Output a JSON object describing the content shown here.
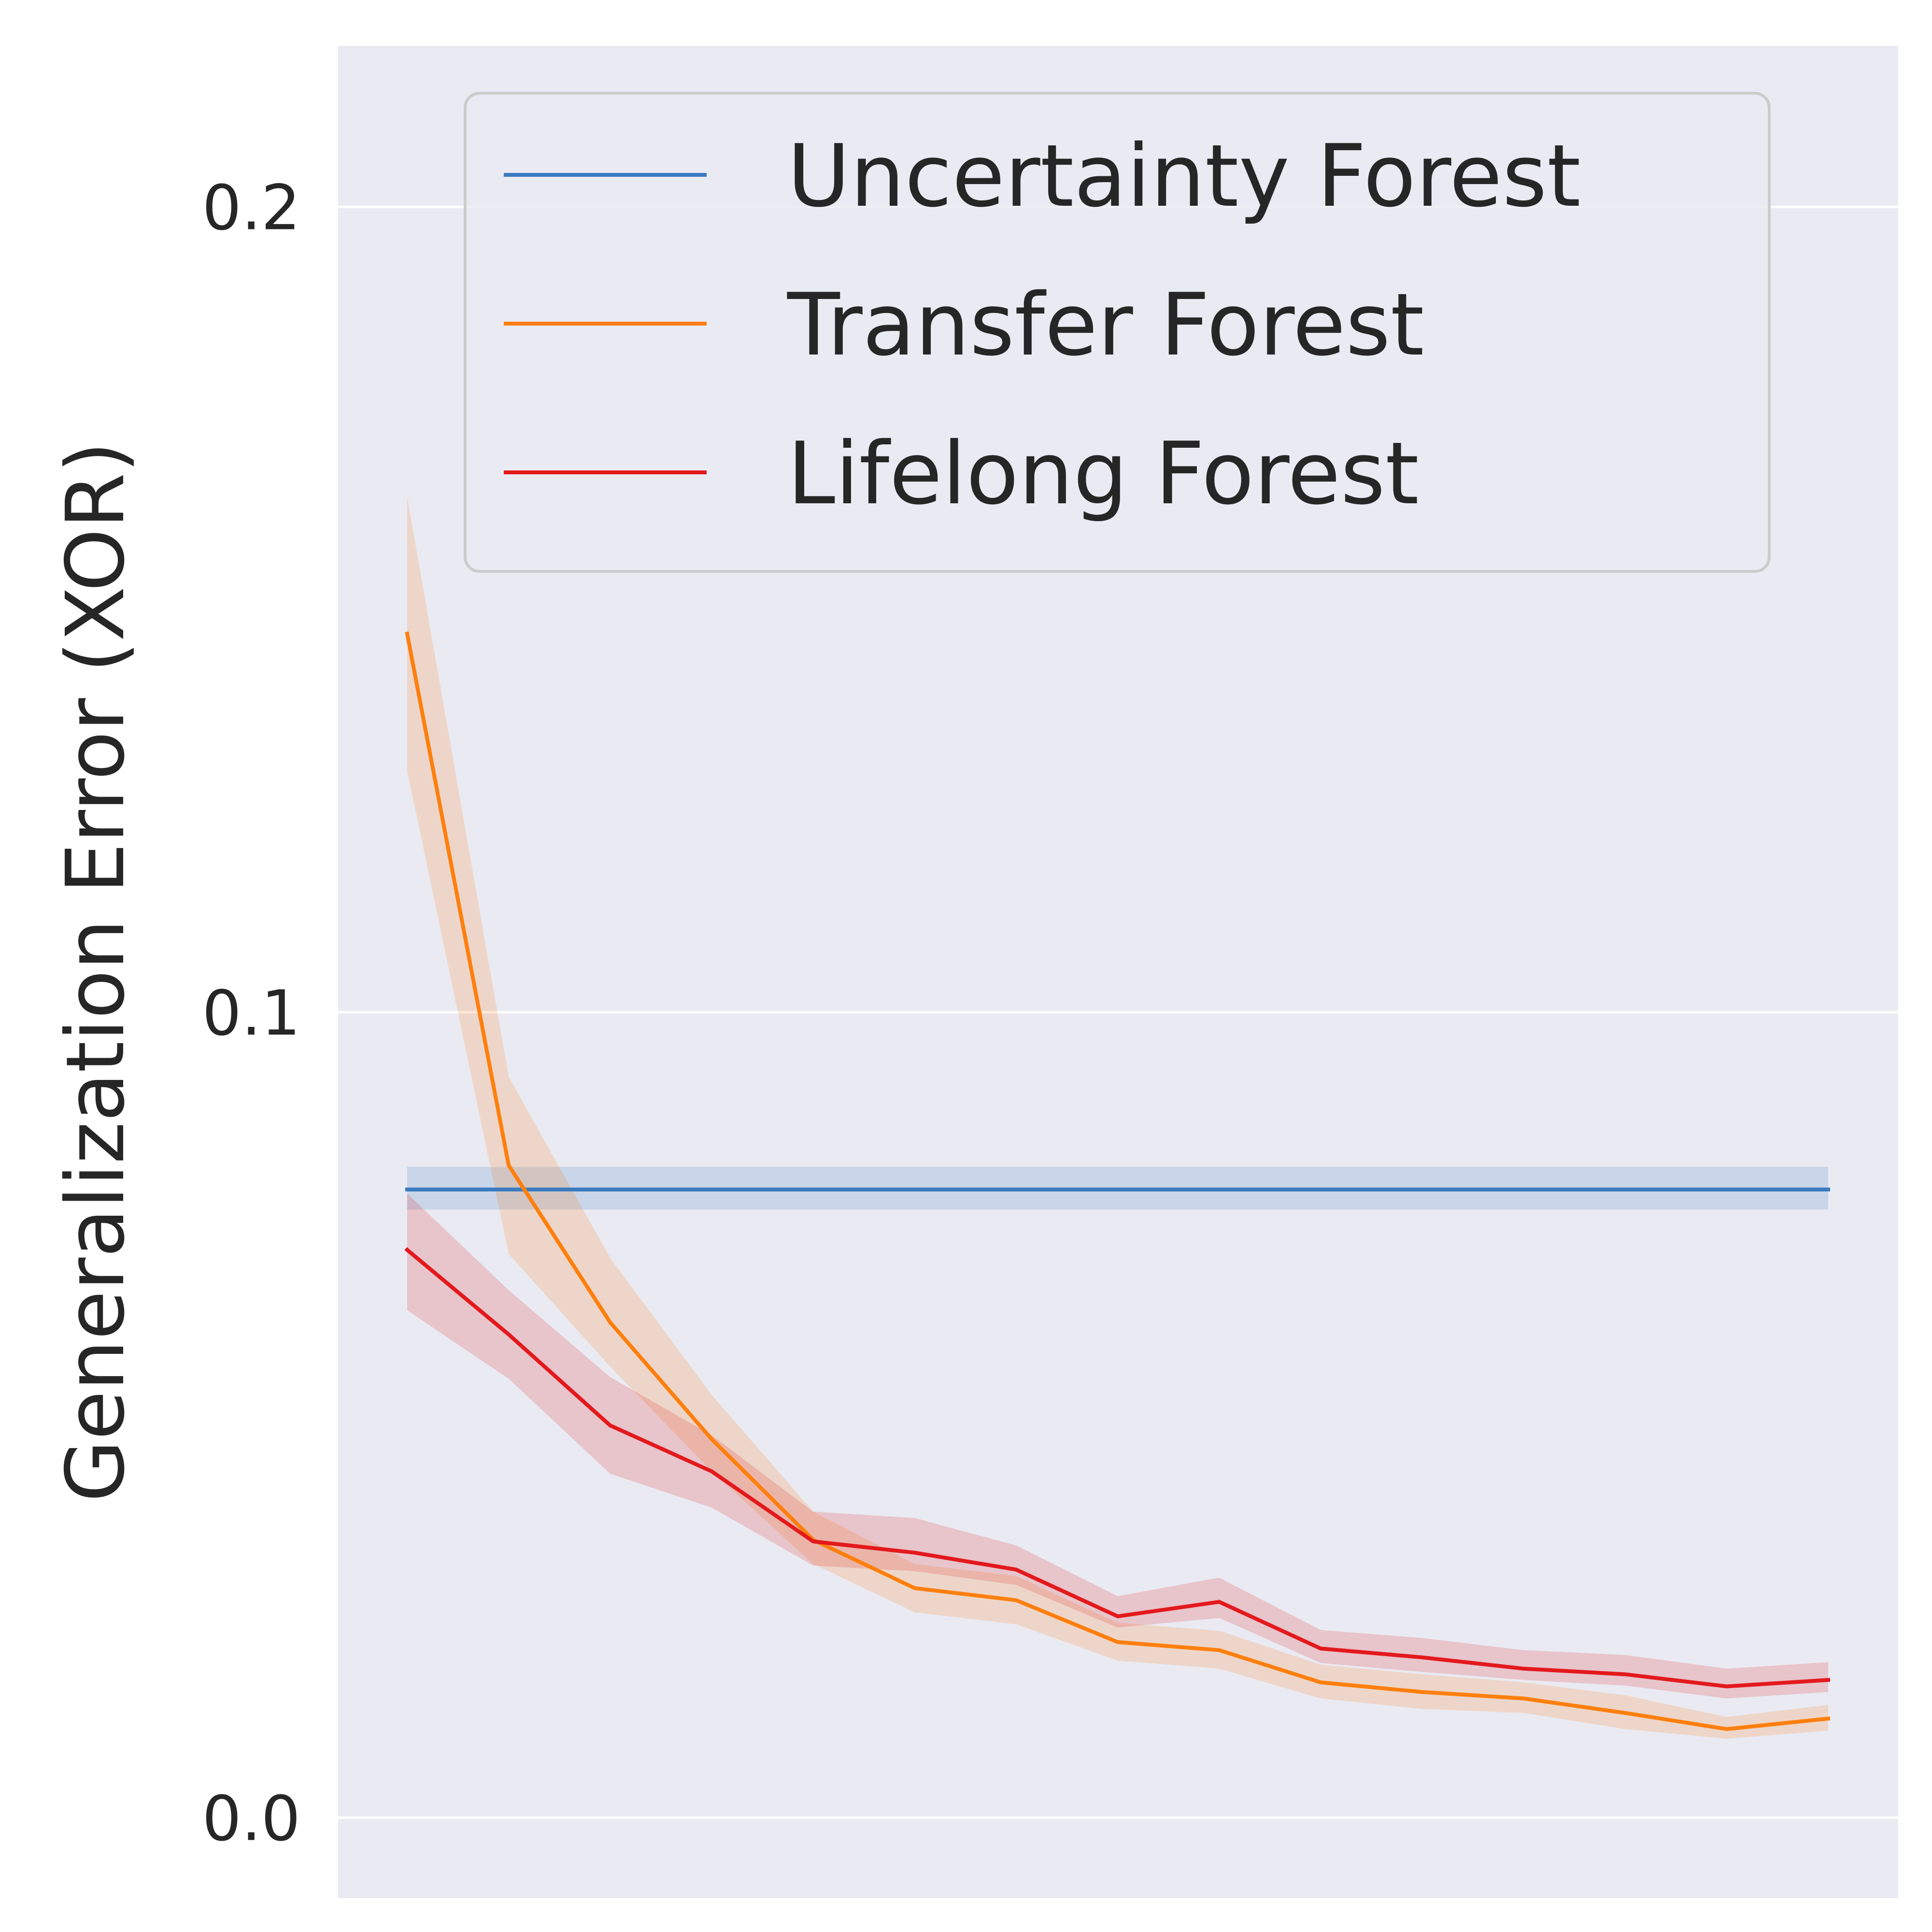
{
  "chart_data": {
    "type": "line",
    "title": "",
    "xlabel": "",
    "ylabel": "Generalization Error (XOR)",
    "ylim": [
      -0.01,
      0.22
    ],
    "yticks": [
      0.0,
      0.1,
      0.2
    ],
    "ytick_labels": [
      "0.0",
      "0.1",
      "0.2"
    ],
    "grid": true,
    "legend_position": "top-right",
    "x": [
      1,
      2,
      3,
      4,
      5,
      6,
      7,
      8,
      9,
      10,
      11,
      12,
      13,
      14,
      15
    ],
    "series": [
      {
        "name": "Uncertainty Forest",
        "color": "#3a7bbf",
        "values": [
          0.078,
          0.078,
          0.078,
          0.078,
          0.078,
          0.078,
          0.078,
          0.078,
          0.078,
          0.078,
          0.078,
          0.078,
          0.078,
          0.078,
          0.078
        ],
        "lower": [
          0.0755,
          0.0755,
          0.0755,
          0.0755,
          0.0755,
          0.0755,
          0.0755,
          0.0755,
          0.0755,
          0.0755,
          0.0755,
          0.0755,
          0.0755,
          0.0755,
          0.0755
        ],
        "upper": [
          0.0808,
          0.0808,
          0.0808,
          0.0808,
          0.0808,
          0.0808,
          0.0808,
          0.0808,
          0.0808,
          0.0808,
          0.0808,
          0.0808,
          0.0808,
          0.0808,
          0.0808
        ]
      },
      {
        "name": "Transfer Forest",
        "color": "#ff7f0e",
        "values": [
          0.147,
          0.081,
          0.0615,
          0.047,
          0.0345,
          0.0285,
          0.027,
          0.0218,
          0.0208,
          0.0168,
          0.0156,
          0.0148,
          0.013,
          0.011,
          0.0123
        ],
        "lower": [
          0.13,
          0.07,
          0.056,
          0.043,
          0.0315,
          0.0255,
          0.024,
          0.0195,
          0.0185,
          0.0148,
          0.0135,
          0.013,
          0.011,
          0.0098,
          0.0108
        ],
        "upper": [
          0.164,
          0.092,
          0.0695,
          0.0525,
          0.038,
          0.0315,
          0.03,
          0.0242,
          0.0232,
          0.019,
          0.0178,
          0.0168,
          0.0152,
          0.0125,
          0.014
        ]
      },
      {
        "name": "Lifelong Forest",
        "color": "#e3191c",
        "values": [
          0.0705,
          0.06,
          0.0487,
          0.043,
          0.0343,
          0.0329,
          0.0308,
          0.025,
          0.0268,
          0.021,
          0.0199,
          0.0185,
          0.0178,
          0.0163,
          0.0171
        ],
        "lower": [
          0.063,
          0.0545,
          0.0427,
          0.0385,
          0.0313,
          0.0306,
          0.0289,
          0.0236,
          0.0248,
          0.0192,
          0.0181,
          0.0171,
          0.0164,
          0.0148,
          0.0156
        ],
        "upper": [
          0.0775,
          0.0655,
          0.0547,
          0.0475,
          0.038,
          0.0372,
          0.0338,
          0.0275,
          0.0298,
          0.0233,
          0.0223,
          0.0208,
          0.0202,
          0.0185,
          0.0193
        ]
      }
    ]
  }
}
